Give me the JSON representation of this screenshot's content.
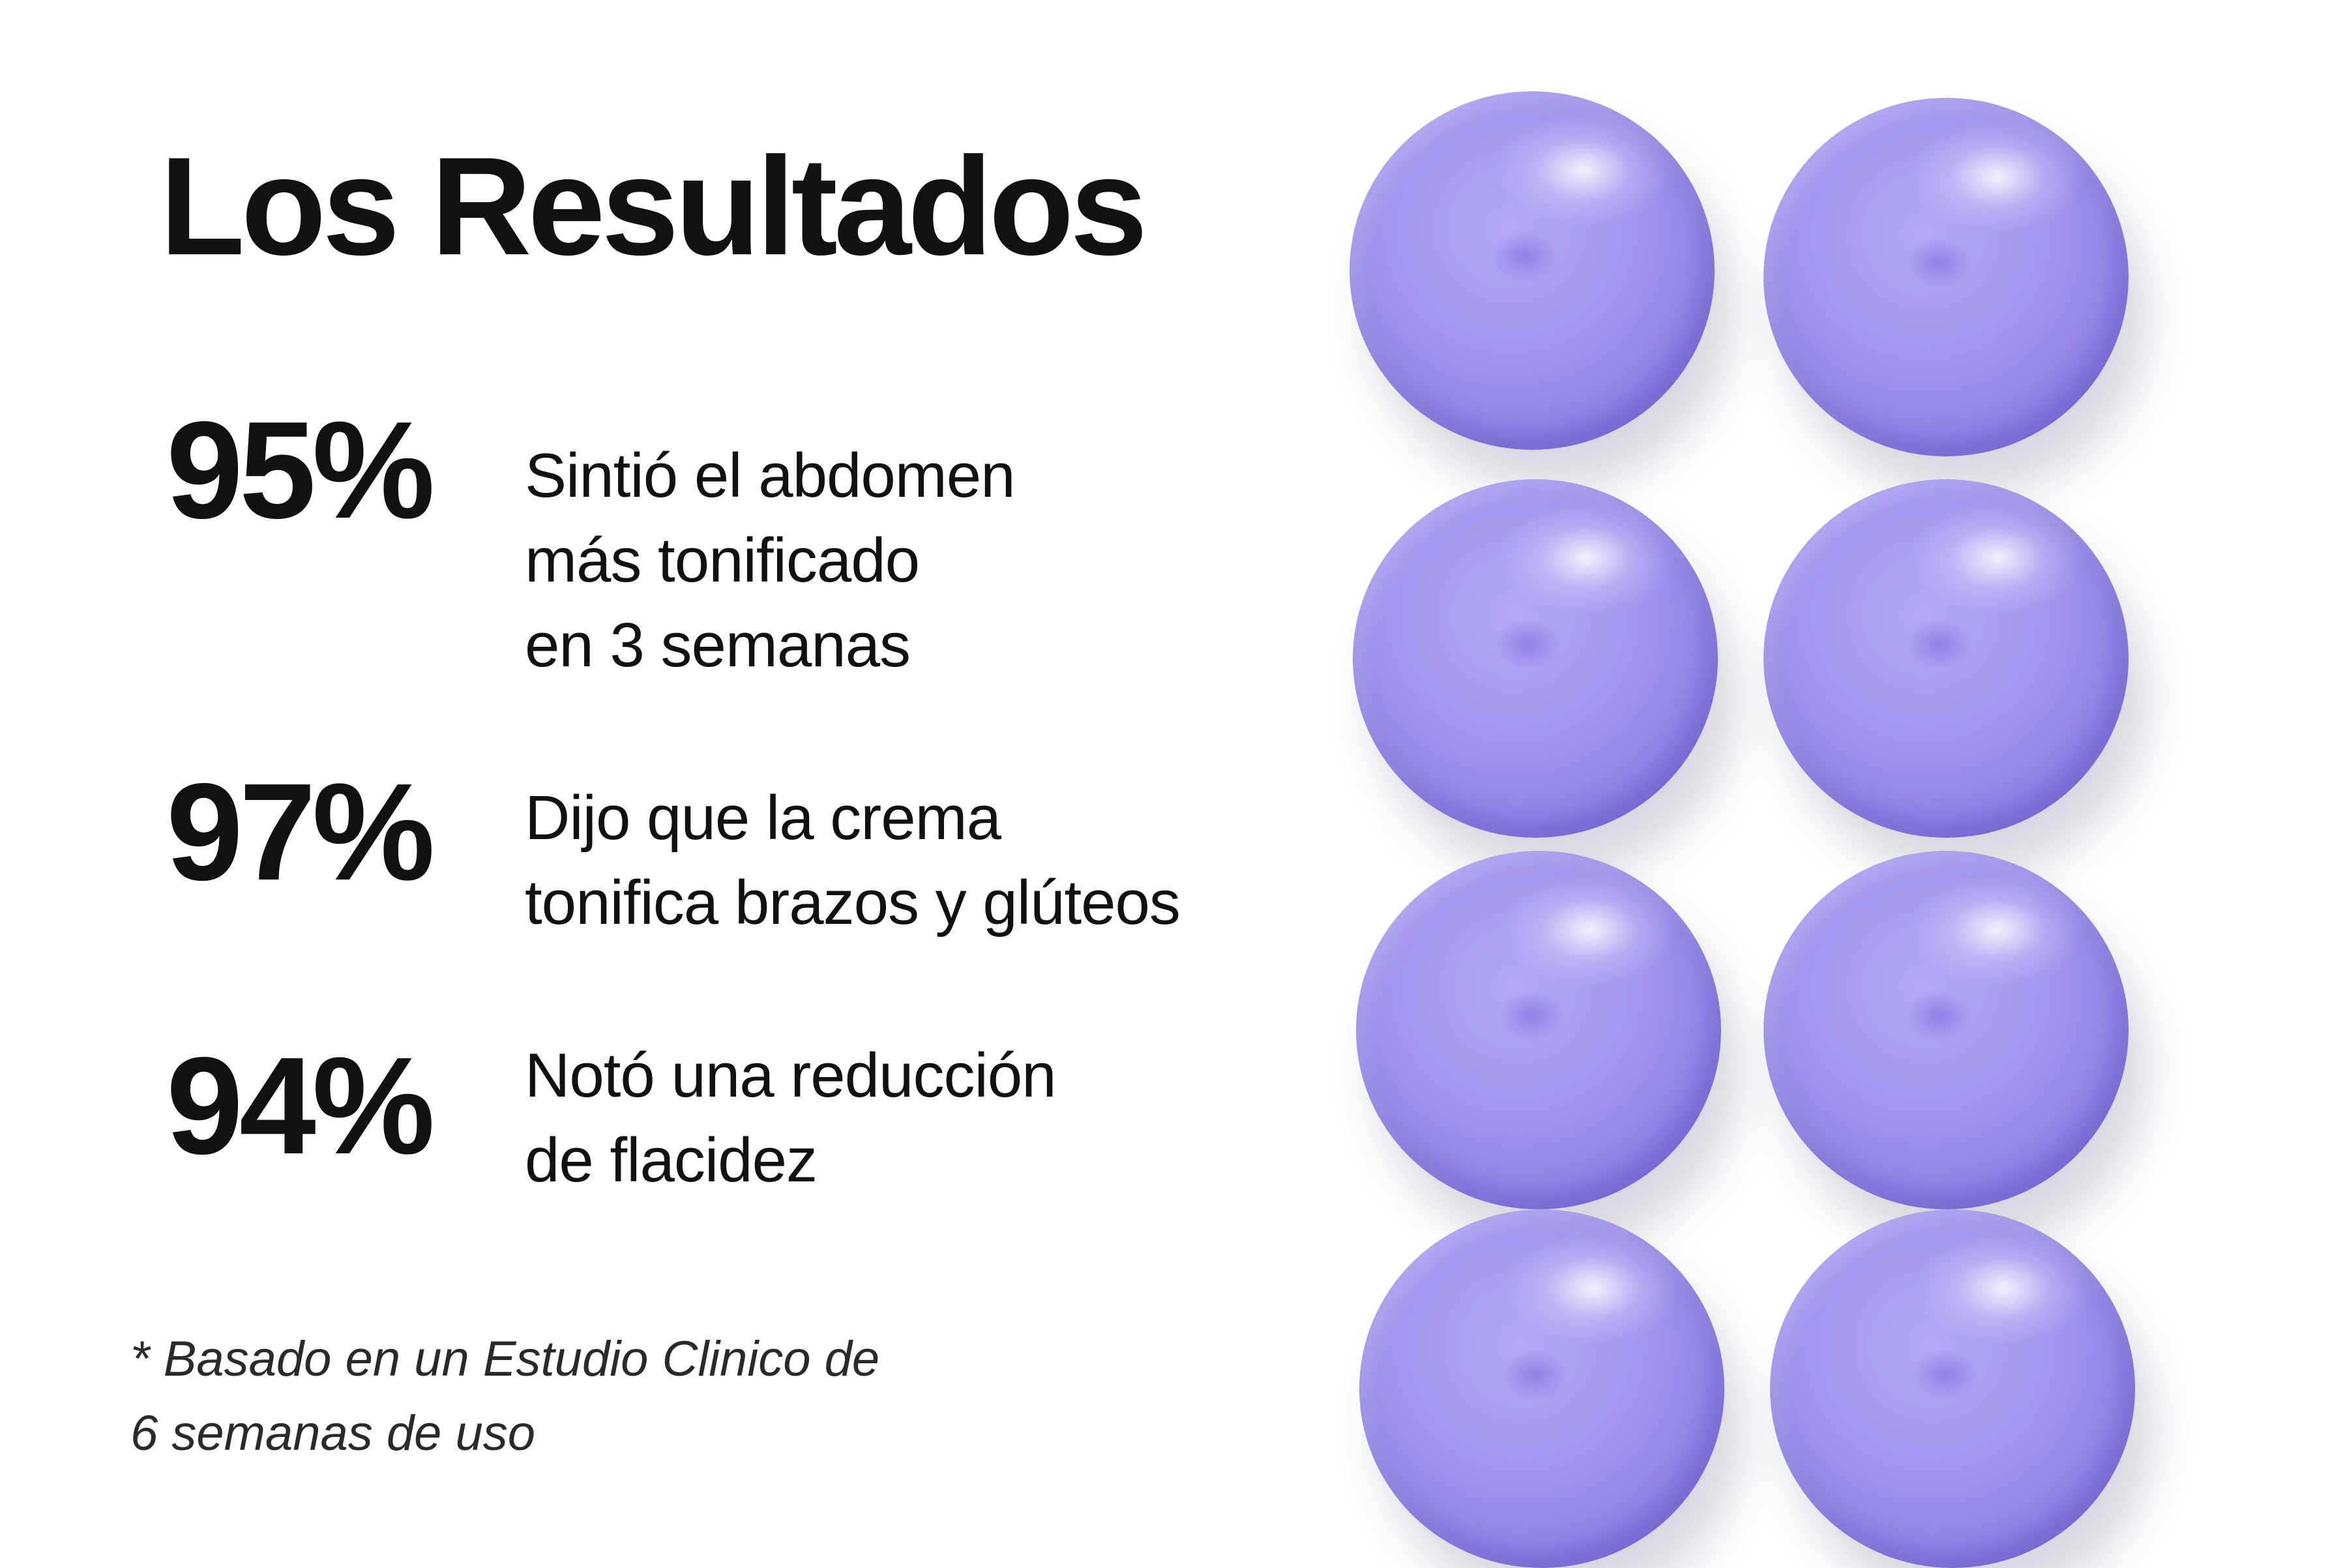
{
  "title": "Los Resultados",
  "stats": [
    {
      "percent": "95%",
      "lines": [
        "Sintió el abdomen",
        "más tonificado",
        "en 3 semanas"
      ]
    },
    {
      "percent": "97%",
      "lines": [
        "Dijo que la crema",
        "tonifica brazos y glúteos"
      ]
    },
    {
      "percent": "94%",
      "lines": [
        "Notó una reducción",
        "de flacidez"
      ]
    }
  ],
  "footnote": [
    "* Basado en un Estudio Clinico de",
    "6 semanas de uso"
  ],
  "colors": {
    "text": "#111111",
    "cream": "#a296ef",
    "background": "#ffffff"
  }
}
